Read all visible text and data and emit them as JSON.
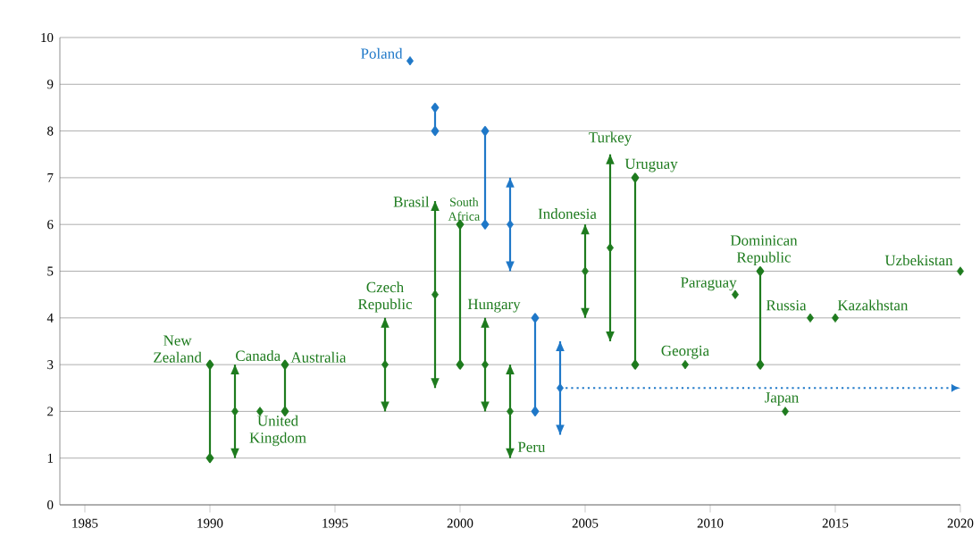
{
  "chart_data": {
    "type": "scatter",
    "xlim": [
      1984,
      2020
    ],
    "ylim": [
      0,
      10
    ],
    "xticks": [
      1985,
      1990,
      1995,
      2000,
      2005,
      2010,
      2015,
      2020
    ],
    "yticks": [
      0,
      1,
      2,
      3,
      4,
      5,
      6,
      7,
      8,
      9,
      10
    ],
    "grid": "y",
    "marker": "diamond",
    "series": [
      {
        "color": "#1e7b1e",
        "x": [
          1991,
          1992,
          1997,
          1999,
          2001,
          2002,
          2005,
          2006,
          2009,
          2011,
          2013,
          2014,
          2015,
          2020
        ],
        "values": [
          2,
          2,
          3,
          4.5,
          3,
          2,
          5,
          5.5,
          3,
          4.5,
          2,
          4,
          4,
          5
        ],
        "errors": [
          1,
          null,
          1,
          2,
          1,
          1,
          1,
          2,
          null,
          null,
          null,
          null,
          null,
          null
        ]
      },
      {
        "color": "#1f78c8",
        "x": [
          1998,
          2002,
          2004
        ],
        "values": [
          9.5,
          6,
          2.5
        ],
        "errors": [
          null,
          1,
          1
        ]
      },
      {
        "type": "line",
        "color": "#1e7b1e",
        "x": [
          1990,
          1990
        ],
        "values": [
          3,
          1
        ]
      },
      {
        "type": "line",
        "color": "#1e7b1e",
        "x": [
          1993,
          1993
        ],
        "values": [
          3,
          2
        ]
      },
      {
        "type": "line",
        "color": "#1e7b1e",
        "x": [
          2000,
          2000
        ],
        "values": [
          6,
          3
        ]
      },
      {
        "type": "line",
        "color": "#1e7b1e",
        "x": [
          2007,
          2007
        ],
        "values": [
          7,
          3
        ]
      },
      {
        "type": "line",
        "color": "#1e7b1e",
        "x": [
          2012,
          2012
        ],
        "values": [
          5,
          3
        ]
      },
      {
        "type": "line",
        "color": "#1f78c8",
        "x": [
          1999,
          1999
        ],
        "values": [
          8.5,
          8
        ]
      },
      {
        "type": "line",
        "color": "#1f78c8",
        "x": [
          2001,
          2001
        ],
        "values": [
          8,
          6
        ]
      },
      {
        "type": "line",
        "color": "#1f78c8",
        "x": [
          2003,
          2003
        ],
        "values": [
          4,
          2
        ]
      }
    ],
    "annotations": [
      {
        "text": "New Zealand",
        "x": 1990,
        "y": 3
      },
      "Canada",
      {
        "text": "United Kingdom",
        "x": 1992,
        "y": 2
      },
      {
        "text": "Australia",
        "x": 1993,
        "y": 3
      },
      "Czech Republic",
      {
        "text": "Poland",
        "x": 1998,
        "y": 9.5
      },
      "Brasil",
      {
        "text": "South Africa",
        "x": 2000,
        "y": 6
      },
      "Hungary",
      {
        "text": "Peru",
        "x": 2002,
        "y": 2
      },
      "Indonesia",
      "Turkey",
      {
        "text": "Uruguay",
        "x": 2007,
        "y": 7
      },
      {
        "text": "Georgia",
        "x": 2009,
        "y": 3
      },
      {
        "text": "Paraguay",
        "x": 2011,
        "y": 4.5
      },
      {
        "text": "Dominican Republic",
        "x": 2012,
        "y": 5
      },
      {
        "text": "Japan",
        "x": 2013,
        "y": 2
      },
      {
        "text": "Russia",
        "x": 2014,
        "y": 4
      },
      {
        "text": "Kazakhstan",
        "x": 2015,
        "y": 4
      },
      {
        "text": "Uzbekistan",
        "x": 2020,
        "y": 5
      }
    ]
  }
}
